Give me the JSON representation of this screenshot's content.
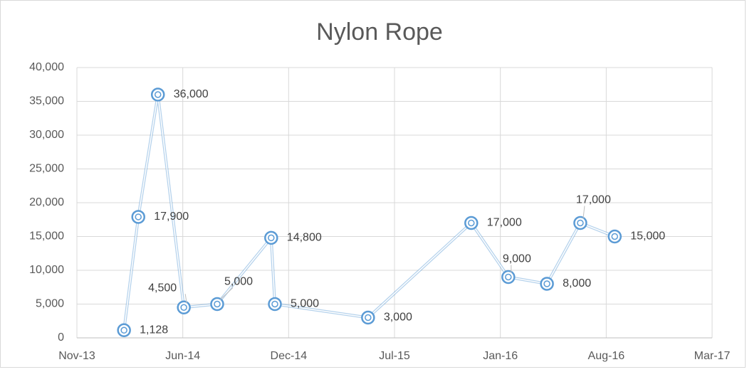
{
  "chart_data": {
    "type": "line",
    "title": "Nylon Rope",
    "x": [
      41689,
      41716,
      41753,
      41802,
      41865,
      41967,
      41974,
      42150,
      42345,
      42415,
      42488,
      42551,
      42616
    ],
    "series": [
      {
        "name": "Nylon Rope",
        "color": "#5b9bd5",
        "values": [
          1128,
          17900,
          36000,
          4500,
          5000,
          14800,
          5000,
          3000,
          17000,
          9000,
          8000,
          17000,
          15000
        ],
        "value_labels": [
          "1,128",
          "17,900",
          "36,000",
          "4,500",
          "5,000",
          "14,800",
          "5,000",
          "3,000",
          "17,000",
          "9,000",
          "8,000",
          "17,000",
          "15,000"
        ]
      }
    ],
    "xlim": [
      41600,
      42800
    ],
    "xticks": [
      {
        "value": 41600,
        "label": "Nov-13"
      },
      {
        "value": 41800,
        "label": "Jun-14"
      },
      {
        "value": 42000,
        "label": "Dec-14"
      },
      {
        "value": 42200,
        "label": "Jul-15"
      },
      {
        "value": 42400,
        "label": "Jan-16"
      },
      {
        "value": 42600,
        "label": "Aug-16"
      },
      {
        "value": 42800,
        "label": "Mar-17"
      }
    ],
    "ylim": [
      0,
      40000
    ],
    "yticks": [
      0,
      {
        "value": 5000,
        "label": "5,000"
      },
      {
        "value": 10000,
        "label": "10,000"
      },
      {
        "value": 15000,
        "label": "15,000"
      },
      {
        "value": 20000,
        "label": "20,000"
      },
      {
        "value": 25000,
        "label": "25,000"
      },
      {
        "value": 30000,
        "label": "30,000"
      },
      {
        "value": 35000,
        "label": "35,000"
      },
      {
        "value": 40000,
        "label": "40,000"
      }
    ],
    "grid": true
  }
}
